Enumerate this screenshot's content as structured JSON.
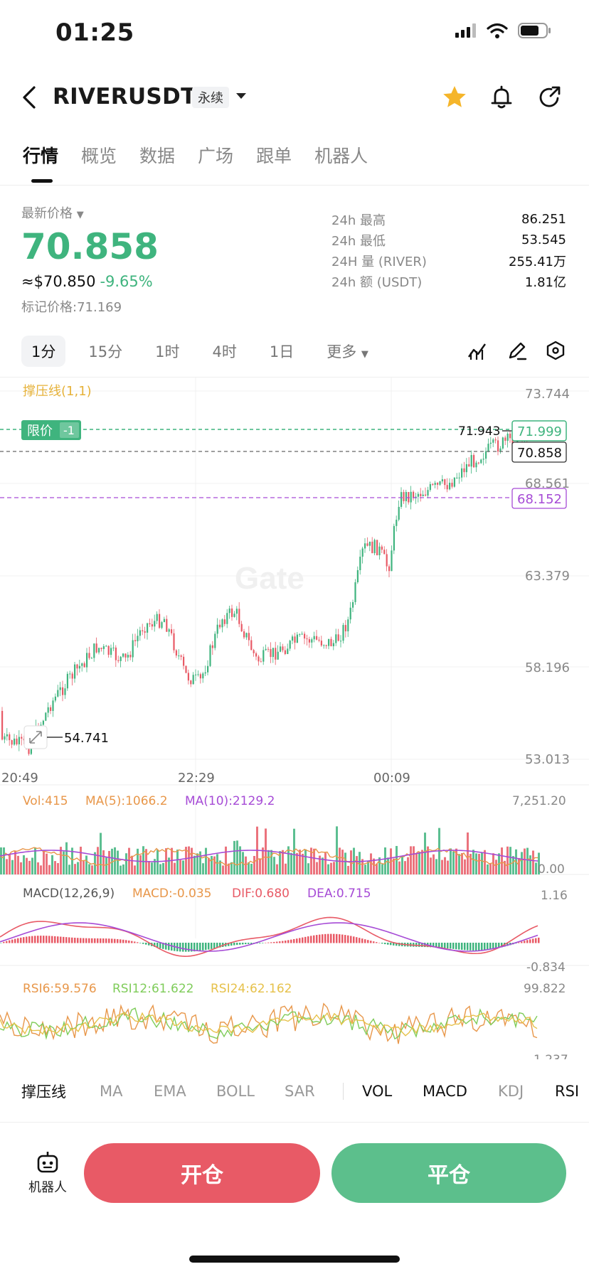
{
  "status_bar": {
    "time": "01:25"
  },
  "header": {
    "symbol": "RIVERUSDT",
    "contract_type": "永续"
  },
  "tabs": [
    "行情",
    "概览",
    "数据",
    "广场",
    "跟单",
    "机器人"
  ],
  "price": {
    "latest_label": "最新价格",
    "last": "70.858",
    "usd": "≈$70.850",
    "change": "-9.65%",
    "mark_label": "标记价格:",
    "mark": "71.169"
  },
  "stats": [
    {
      "label": "24h  最高",
      "value": "86.251"
    },
    {
      "label": "24h  最低",
      "value": "53.545"
    },
    {
      "label": "24H  量 (RIVER)",
      "value": "255.41万"
    },
    {
      "label": "24h  额 (USDT)",
      "value": "1.81亿"
    }
  ],
  "intervals": [
    "1分",
    "15分",
    "1时",
    "4时",
    "1日",
    "更多"
  ],
  "chart": {
    "sr_label": "撑压线(1,1)",
    "y_ticks": [
      "73.744",
      "68.561",
      "63.379",
      "58.196",
      "53.013"
    ],
    "x_ticks": [
      "20:49",
      "22:29",
      "00:09"
    ],
    "limit_tag": "限价",
    "limit_count": "-1",
    "limit_price": "71.999",
    "level_label": "71.943",
    "last_price": "70.858",
    "purple_price": "68.152",
    "low_label": "54.741",
    "watermark": "Gate"
  },
  "volume": {
    "vol": "Vol:415",
    "ma5": "MA(5):1066.2",
    "ma10": "MA(10):2129.2",
    "max": "7,251.20",
    "min": "0.00"
  },
  "macd": {
    "title": "MACD(12,26,9)",
    "macd": "MACD:-0.035",
    "dif": "DIF:0.680",
    "dea": "DEA:0.715",
    "max": "1.16",
    "min": "-0.834"
  },
  "rsi": {
    "r6": "RSI6:59.576",
    "r12": "RSI12:61.622",
    "r24": "RSI24:62.162",
    "max": "99.822",
    "min": "1.237"
  },
  "indicator_tabs": [
    "撑压线",
    "MA",
    "EMA",
    "BOLL",
    "SAR",
    "VOL",
    "MACD",
    "KDJ",
    "RSI"
  ],
  "bottom": {
    "robot": "机器人",
    "open": "开仓",
    "close": "平仓"
  },
  "colors": {
    "up": "#3fb47e",
    "down": "#e85a66",
    "purple": "#a64bd6",
    "orange": "#e8974a",
    "yellow": "#e6c14a"
  }
}
